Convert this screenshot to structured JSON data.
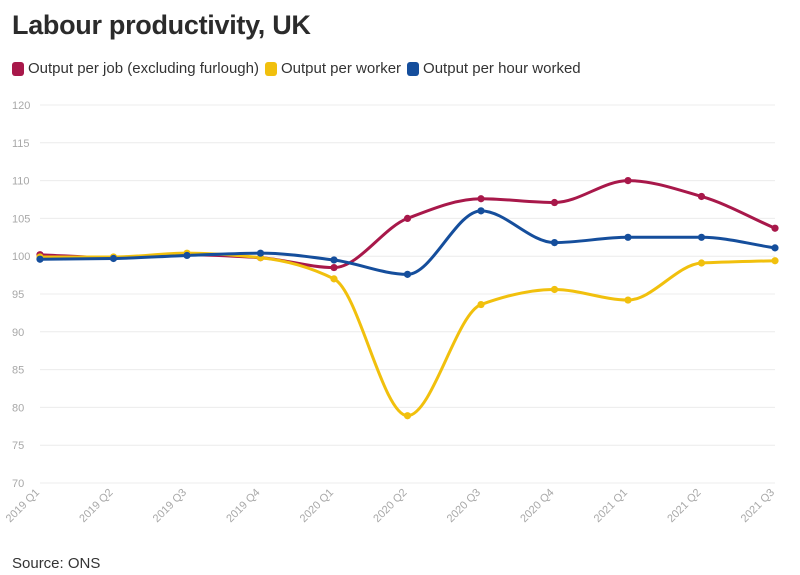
{
  "title": "Labour productivity, UK",
  "source": "Source: ONS",
  "chart_data": {
    "type": "line",
    "title": "Labour productivity, UK",
    "xlabel": "",
    "ylabel": "",
    "categories": [
      "2019 Q1",
      "2019 Q2",
      "2019 Q3",
      "2019 Q4",
      "2020 Q1",
      "2020 Q2",
      "2020 Q3",
      "2020 Q4",
      "2021 Q1",
      "2021 Q2",
      "2021 Q3"
    ],
    "ylim": [
      70,
      120
    ],
    "yticks": [
      70,
      75,
      80,
      85,
      90,
      95,
      100,
      105,
      110,
      115,
      120
    ],
    "grid": true,
    "legend_position": "top-left",
    "series": [
      {
        "name": "Output per job (excluding furlough)",
        "color": "#a8184a",
        "values": [
          100.2,
          99.8,
          100.2,
          99.8,
          98.5,
          105.0,
          107.6,
          107.1,
          110.0,
          107.9,
          103.7
        ]
      },
      {
        "name": "Output per worker",
        "color": "#f1c00d",
        "values": [
          99.9,
          99.9,
          100.4,
          99.8,
          97.0,
          78.9,
          93.6,
          95.6,
          94.2,
          99.1,
          99.4
        ]
      },
      {
        "name": "Output per hour worked",
        "color": "#154e9c",
        "values": [
          99.6,
          99.7,
          100.1,
          100.4,
          99.5,
          97.6,
          106.0,
          101.8,
          102.5,
          102.5,
          101.1
        ]
      }
    ]
  }
}
